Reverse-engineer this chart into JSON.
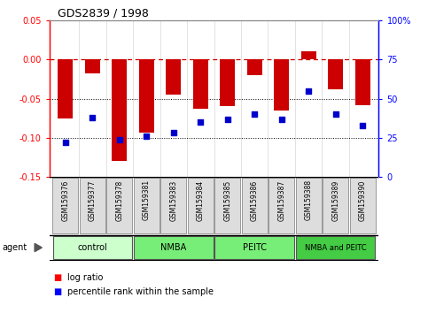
{
  "title": "GDS2839 / 1998",
  "samples": [
    "GSM159376",
    "GSM159377",
    "GSM159378",
    "GSM159381",
    "GSM159383",
    "GSM159384",
    "GSM159385",
    "GSM159386",
    "GSM159387",
    "GSM159388",
    "GSM159389",
    "GSM159390"
  ],
  "log_ratio": [
    -0.075,
    -0.018,
    -0.13,
    -0.093,
    -0.045,
    -0.063,
    -0.06,
    -0.02,
    -0.065,
    0.01,
    -0.038,
    -0.058
  ],
  "percentile_rank": [
    22,
    38,
    24,
    26,
    28,
    35,
    37,
    40,
    37,
    55,
    40,
    33
  ],
  "groups": [
    {
      "label": "control",
      "start": 0,
      "end": 3,
      "color": "#ccffcc"
    },
    {
      "label": "NMBA",
      "start": 3,
      "end": 6,
      "color": "#77ee77"
    },
    {
      "label": "PEITC",
      "start": 6,
      "end": 9,
      "color": "#77ee77"
    },
    {
      "label": "NMBA and PEITC",
      "start": 9,
      "end": 12,
      "color": "#44cc44"
    }
  ],
  "ylim_left": [
    -0.15,
    0.05
  ],
  "ylim_right": [
    0,
    100
  ],
  "bar_color": "#cc0000",
  "dot_color": "#0000cc",
  "hline_color": "#cc0000",
  "bg_color": "#ffffff",
  "grid_color": "#000000",
  "agent_label": "agent",
  "legend_log": "log ratio",
  "legend_pct": "percentile rank within the sample",
  "left_yticks": [
    0.05,
    0.0,
    -0.05,
    -0.1,
    -0.15
  ],
  "right_yticks": [
    100,
    75,
    50,
    25,
    0
  ],
  "right_yticklabels": [
    "100%",
    "75",
    "50",
    "25",
    "0"
  ]
}
